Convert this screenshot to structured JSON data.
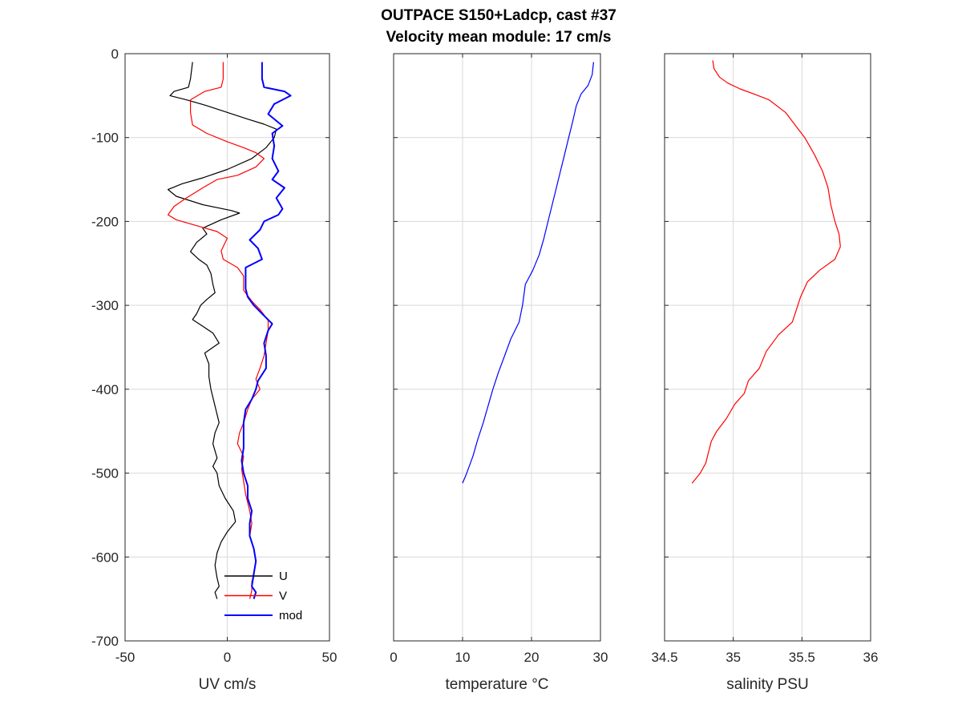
{
  "chart_data": {
    "title_lines": [
      "OUTPACE S150+Ladcp, cast #37",
      "Velocity mean module:  17 cm/s"
    ],
    "panels": [
      {
        "type": "line",
        "xlabel": "UV cm/s",
        "ylabel": "",
        "xlim": [
          -50,
          50
        ],
        "ylim": [
          -700,
          0
        ],
        "xticks": [
          -50,
          0,
          50
        ],
        "yticks": [
          0,
          -100,
          -200,
          -300,
          -400,
          -500,
          -600,
          -700
        ],
        "grid": true,
        "legend": {
          "placement": "bottom-center",
          "entries": [
            "U",
            "V",
            "mod"
          ]
        },
        "series": [
          {
            "name": "U",
            "color": "#000000",
            "points": [
              [
                -17,
                -10
              ],
              [
                -18,
                -30
              ],
              [
                -19,
                -40
              ],
              [
                -26,
                -45
              ],
              [
                -28,
                -50
              ],
              [
                -20,
                -55
              ],
              [
                -10,
                -62
              ],
              [
                0,
                -70
              ],
              [
                10,
                -78
              ],
              [
                18,
                -84
              ],
              [
                24,
                -90
              ],
              [
                23,
                -100
              ],
              [
                19,
                -112
              ],
              [
                12,
                -125
              ],
              [
                0,
                -138
              ],
              [
                -12,
                -148
              ],
              [
                -22,
                -155
              ],
              [
                -29,
                -162
              ],
              [
                -25,
                -170
              ],
              [
                -12,
                -180
              ],
              [
                2,
                -187
              ],
              [
                6,
                -190
              ],
              [
                -3,
                -198
              ],
              [
                -12,
                -208
              ],
              [
                -10,
                -215
              ],
              [
                -15,
                -225
              ],
              [
                -18,
                -236
              ],
              [
                -14,
                -245
              ],
              [
                -10,
                -252
              ],
              [
                -8,
                -262
              ],
              [
                -7,
                -275
              ],
              [
                -6,
                -285
              ],
              [
                -10,
                -293
              ],
              [
                -13,
                -300
              ],
              [
                -15,
                -310
              ],
              [
                -17,
                -317
              ],
              [
                -12,
                -325
              ],
              [
                -7,
                -333
              ],
              [
                -4,
                -345
              ],
              [
                -11,
                -357
              ],
              [
                -9,
                -370
              ],
              [
                -9,
                -385
              ],
              [
                -8,
                -400
              ],
              [
                -6,
                -420
              ],
              [
                -4,
                -440
              ],
              [
                -6,
                -452
              ],
              [
                -7,
                -465
              ],
              [
                -5,
                -482
              ],
              [
                -7,
                -492
              ],
              [
                -5,
                -500
              ],
              [
                -4,
                -515
              ],
              [
                -1,
                -530
              ],
              [
                3,
                -545
              ],
              [
                4,
                -558
              ],
              [
                0,
                -570
              ],
              [
                -3,
                -582
              ],
              [
                -5,
                -595
              ],
              [
                -6,
                -610
              ],
              [
                -5,
                -625
              ],
              [
                -4,
                -635
              ],
              [
                -6,
                -642
              ],
              [
                -5,
                -650
              ]
            ]
          },
          {
            "name": "V",
            "color": "#ff0000",
            "points": [
              [
                -2,
                -10
              ],
              [
                -2,
                -30
              ],
              [
                -3,
                -40
              ],
              [
                -11,
                -45
              ],
              [
                -18,
                -55
              ],
              [
                -18,
                -70
              ],
              [
                -17,
                -85
              ],
              [
                -10,
                -95
              ],
              [
                0,
                -105
              ],
              [
                8,
                -112
              ],
              [
                14,
                -118
              ],
              [
                18,
                -125
              ],
              [
                14,
                -135
              ],
              [
                5,
                -145
              ],
              [
                -5,
                -150
              ],
              [
                -12,
                -160
              ],
              [
                -20,
                -172
              ],
              [
                -26,
                -182
              ],
              [
                -29,
                -192
              ],
              [
                -25,
                -198
              ],
              [
                -15,
                -205
              ],
              [
                -5,
                -212
              ],
              [
                0,
                -220
              ],
              [
                -3,
                -235
              ],
              [
                -2,
                -245
              ],
              [
                5,
                -255
              ],
              [
                8,
                -265
              ],
              [
                8,
                -282
              ],
              [
                12,
                -295
              ],
              [
                16,
                -305
              ],
              [
                20,
                -318
              ],
              [
                20,
                -330
              ],
              [
                19,
                -345
              ],
              [
                18,
                -360
              ],
              [
                16,
                -375
              ],
              [
                14,
                -388
              ],
              [
                16,
                -400
              ],
              [
                12,
                -412
              ],
              [
                10,
                -424
              ],
              [
                8,
                -440
              ],
              [
                6,
                -452
              ],
              [
                5,
                -465
              ],
              [
                8,
                -480
              ],
              [
                7,
                -495
              ],
              [
                8,
                -510
              ],
              [
                9,
                -525
              ],
              [
                11,
                -545
              ],
              [
                12,
                -560
              ],
              [
                11,
                -575
              ],
              [
                13,
                -590
              ],
              [
                14,
                -605
              ],
              [
                13,
                -620
              ],
              [
                12,
                -630
              ],
              [
                12,
                -640
              ],
              [
                11,
                -650
              ]
            ]
          },
          {
            "name": "mod",
            "color": "#0000ff",
            "points": [
              [
                17,
                -10
              ],
              [
                17,
                -30
              ],
              [
                18,
                -40
              ],
              [
                28,
                -45
              ],
              [
                31,
                -50
              ],
              [
                23,
                -60
              ],
              [
                20,
                -72
              ],
              [
                27,
                -86
              ],
              [
                22,
                -95
              ],
              [
                23,
                -110
              ],
              [
                22,
                -125
              ],
              [
                25,
                -140
              ],
              [
                22,
                -150
              ],
              [
                28,
                -160
              ],
              [
                24,
                -172
              ],
              [
                27,
                -185
              ],
              [
                25,
                -192
              ],
              [
                18,
                -200
              ],
              [
                16,
                -210
              ],
              [
                11,
                -222
              ],
              [
                15,
                -232
              ],
              [
                17,
                -245
              ],
              [
                9,
                -255
              ],
              [
                9,
                -265
              ],
              [
                9,
                -280
              ],
              [
                10,
                -290
              ],
              [
                13,
                -300
              ],
              [
                17,
                -310
              ],
              [
                22,
                -322
              ],
              [
                20,
                -330
              ],
              [
                18,
                -345
              ],
              [
                19,
                -360
              ],
              [
                19,
                -375
              ],
              [
                15,
                -390
              ],
              [
                14,
                -400
              ],
              [
                12,
                -412
              ],
              [
                9,
                -424
              ],
              [
                8,
                -440
              ],
              [
                8,
                -455
              ],
              [
                8,
                -470
              ],
              [
                7,
                -485
              ],
              [
                8,
                -500
              ],
              [
                10,
                -515
              ],
              [
                10,
                -530
              ],
              [
                12,
                -545
              ],
              [
                11,
                -560
              ],
              [
                11,
                -575
              ],
              [
                13,
                -590
              ],
              [
                14,
                -605
              ],
              [
                13,
                -620
              ],
              [
                12,
                -635
              ],
              [
                14,
                -642
              ],
              [
                13,
                -650
              ]
            ]
          }
        ]
      },
      {
        "type": "line",
        "xlabel": "temperature °C",
        "ylabel": "",
        "xlim": [
          0,
          30
        ],
        "ylim": [
          -700,
          0
        ],
        "xticks": [
          0,
          10,
          20,
          30
        ],
        "yticks": [
          0,
          -100,
          -200,
          -300,
          -400,
          -500,
          -600,
          -700
        ],
        "grid": true,
        "series": [
          {
            "name": "",
            "color": "#0000ff",
            "points": [
              [
                29,
                -10
              ],
              [
                28.8,
                -25
              ],
              [
                28.2,
                -38
              ],
              [
                27.2,
                -48
              ],
              [
                26.5,
                -62
              ],
              [
                26,
                -80
              ],
              [
                25.4,
                -100
              ],
              [
                24.8,
                -120
              ],
              [
                24.2,
                -140
              ],
              [
                23.6,
                -160
              ],
              [
                23,
                -180
              ],
              [
                22.4,
                -200
              ],
              [
                21.8,
                -220
              ],
              [
                21.1,
                -240
              ],
              [
                20.2,
                -258
              ],
              [
                19.1,
                -275
              ],
              [
                18.7,
                -300
              ],
              [
                18.2,
                -320
              ],
              [
                17,
                -340
              ],
              [
                16.1,
                -360
              ],
              [
                15.2,
                -380
              ],
              [
                14.4,
                -400
              ],
              [
                13.7,
                -420
              ],
              [
                13,
                -440
              ],
              [
                12.2,
                -460
              ],
              [
                11.5,
                -480
              ],
              [
                10.6,
                -500
              ],
              [
                10,
                -512
              ]
            ]
          }
        ]
      },
      {
        "type": "line",
        "xlabel": "salinity PSU",
        "ylabel": "",
        "xlim": [
          34.5,
          36
        ],
        "ylim": [
          -700,
          0
        ],
        "xticks": [
          34.5,
          35,
          35.5,
          36
        ],
        "yticks": [
          0,
          -100,
          -200,
          -300,
          -400,
          -500,
          -600,
          -700
        ],
        "grid": true,
        "series": [
          {
            "name": "",
            "color": "#ff0000",
            "points": [
              [
                34.85,
                -8
              ],
              [
                34.86,
                -18
              ],
              [
                34.9,
                -28
              ],
              [
                34.96,
                -35
              ],
              [
                35.05,
                -42
              ],
              [
                35.15,
                -48
              ],
              [
                35.26,
                -55
              ],
              [
                35.38,
                -70
              ],
              [
                35.45,
                -85
              ],
              [
                35.52,
                -100
              ],
              [
                35.59,
                -120
              ],
              [
                35.65,
                -140
              ],
              [
                35.69,
                -160
              ],
              [
                35.71,
                -180
              ],
              [
                35.74,
                -200
              ],
              [
                35.77,
                -215
              ],
              [
                35.78,
                -230
              ],
              [
                35.74,
                -245
              ],
              [
                35.63,
                -258
              ],
              [
                35.54,
                -272
              ],
              [
                35.49,
                -290
              ],
              [
                35.45,
                -310
              ],
              [
                35.43,
                -320
              ],
              [
                35.33,
                -335
              ],
              [
                35.24,
                -355
              ],
              [
                35.19,
                -375
              ],
              [
                35.11,
                -390
              ],
              [
                35.08,
                -405
              ],
              [
                35.01,
                -418
              ],
              [
                34.95,
                -435
              ],
              [
                34.88,
                -450
              ],
              [
                34.84,
                -462
              ],
              [
                34.82,
                -475
              ],
              [
                34.8,
                -488
              ],
              [
                34.76,
                -500
              ],
              [
                34.7,
                -512
              ]
            ]
          }
        ]
      }
    ]
  }
}
